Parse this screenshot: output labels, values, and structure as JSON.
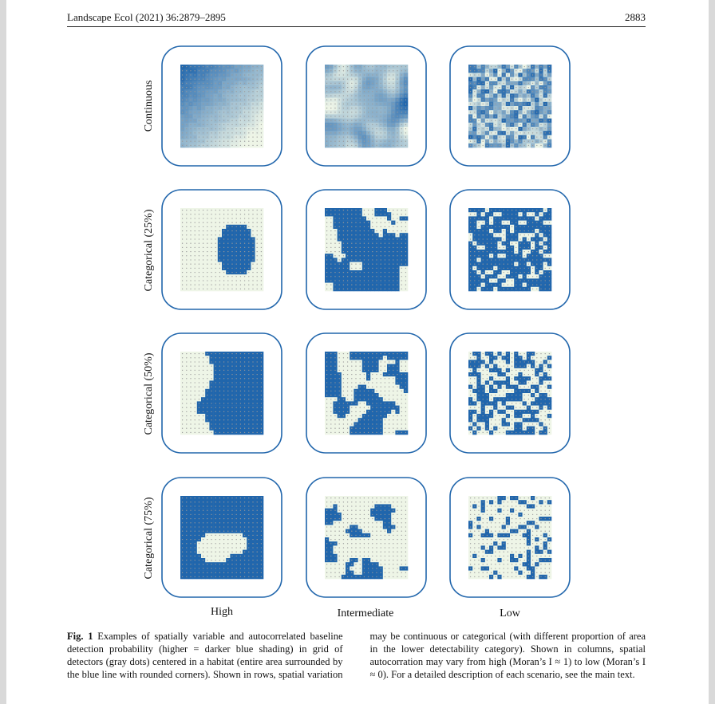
{
  "header": {
    "journal": "Landscape Ecol (2021) 36:2879–2895",
    "page_number": "2883"
  },
  "figure": {
    "row_labels": [
      "Continuous",
      "Categorical (25%)",
      "Categorical (50%)",
      "Categorical (75%)"
    ],
    "column_labels": [
      "High",
      "Intermediate",
      "Low"
    ],
    "colors": {
      "habitat_outline": "#2166ac",
      "dark_cell": "#2166ac",
      "light_cell": "#eef5e7",
      "detector_dot": "#9a9a9a"
    },
    "grid_cells": 20
  },
  "caption": {
    "label": "Fig. 1",
    "text": "Examples of spatially variable and autocorrelated baseline detection probability (higher = darker blue shading) in grid of detectors (gray dots) centered in a habitat (entire area surrounded by the blue line with rounded corners). Shown in rows, spatial variation may be continuous or categorical (with different proportion of area in the lower detectability category). Shown in columns, spatial autocorration may vary from high (Moran’s I ≈ 1) to low (Moran’s I ≈ 0). For a detailed description of each scenario, see the main text."
  }
}
